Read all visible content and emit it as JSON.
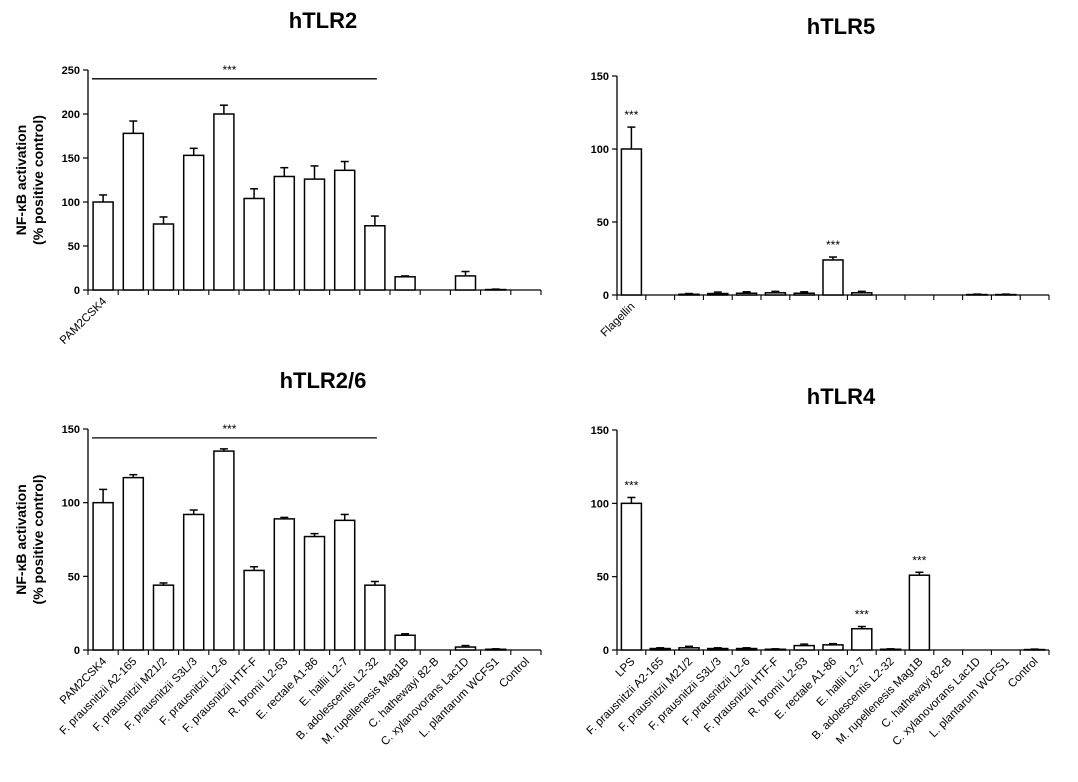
{
  "chart_data": [
    {
      "id": "p1",
      "type": "bar",
      "title": "hTLR2",
      "ylabel": [
        "NF-κB activation",
        "(% positive control)"
      ],
      "xlabel": "",
      "ylim": [
        0,
        250
      ],
      "yticks": [
        0,
        50,
        100,
        150,
        200,
        250
      ],
      "categories": [
        "PAM2CSK4",
        "",
        "",
        "",
        "",
        "",
        "",
        "",
        "",
        "",
        "",
        "",
        "",
        "",
        ""
      ],
      "values": [
        100,
        178,
        75,
        153,
        200,
        104,
        129,
        126,
        136,
        73,
        15,
        0,
        16,
        0.5,
        0
      ],
      "errors": [
        8,
        14,
        8,
        8,
        10,
        11,
        10,
        15,
        10,
        11,
        1,
        0,
        5,
        0.5,
        0
      ],
      "annotations": [
        {
          "text": "***",
          "type": "bracket",
          "value": 240,
          "from": 0,
          "to": 9
        }
      ]
    },
    {
      "id": "p2",
      "type": "bar",
      "title": "hTLR5",
      "ylabel": [],
      "xlabel": "",
      "ylim": [
        0,
        150
      ],
      "yticks": [
        0,
        50,
        100,
        150
      ],
      "categories": [
        "Flagellin",
        "",
        "",
        "",
        "",
        "",
        "",
        "",
        "",
        "",
        "",
        "",
        "",
        "",
        ""
      ],
      "values": [
        100,
        0,
        0.5,
        1,
        1.2,
        1.5,
        1.2,
        24,
        1.5,
        0,
        0,
        0,
        0.3,
        0.3,
        0
      ],
      "errors": [
        15,
        0,
        0.5,
        1,
        1,
        1,
        1,
        2,
        1,
        0,
        0,
        0,
        0.3,
        0.3,
        0
      ],
      "annotations": [
        {
          "text": "***",
          "type": "over",
          "index": 0
        },
        {
          "text": "***",
          "type": "over",
          "index": 7
        }
      ]
    },
    {
      "id": "p3",
      "type": "bar",
      "title": "hTLR2/6",
      "ylabel": [
        "NF-κB activation",
        "(% positive control)"
      ],
      "xlabel": "",
      "ylim": [
        0,
        150
      ],
      "yticks": [
        0,
        50,
        100,
        150
      ],
      "categories": [
        "PAM2CSK4",
        "F. prausnitzii A2-165",
        "F. prausnitzii M21/2",
        "F. prausnitzii S3L/3",
        "F. prausnitzii L2-6",
        "F. prausnitzii HTF-F",
        "R. bromii L2-63",
        "E. rectale A1-86",
        "E. hallii L2-7",
        "B. adolescentis L2-32",
        "M. rupellenesis Mag1B",
        "C. hathewayi 82-B",
        "C. xylanovorans Lac1D",
        "L. plantarum WCFS1",
        "Control"
      ],
      "values": [
        100,
        117,
        44,
        92,
        135,
        54,
        89,
        77,
        88,
        44,
        10,
        0,
        2,
        0.5,
        0
      ],
      "errors": [
        9,
        2,
        1.5,
        3,
        1.5,
        2.5,
        1,
        2,
        4,
        2.5,
        1,
        0,
        1,
        0.3,
        0
      ],
      "annotations": [
        {
          "text": "***",
          "type": "bracket",
          "value": 144,
          "from": 0,
          "to": 9
        }
      ]
    },
    {
      "id": "p4",
      "type": "bar",
      "title": "hTLR4",
      "ylabel": [],
      "xlabel": "",
      "ylim": [
        0,
        150
      ],
      "yticks": [
        0,
        50,
        100,
        150
      ],
      "categories": [
        "LPS",
        "F. prausnitzii A2-165",
        "F. prausnitzii M21/2",
        "F. prausnitzii S3L/3",
        "F. prausnitzii L2-6",
        "F. prausnitzii HTF-F",
        "R. bromii L2-63",
        "E. rectale A1-86",
        "E. hallii L2-7",
        "B. adolescentis L2-32",
        "M. rupellenesis Mag1B",
        "C. hathewayi 82-B",
        "C. xylanovorans Lac1D",
        "L. plantarum WCFS1",
        "Control"
      ],
      "values": [
        100,
        1,
        1.5,
        1,
        1,
        0.5,
        3,
        3.5,
        14.5,
        0.5,
        51,
        0,
        0,
        0,
        0.3
      ],
      "errors": [
        4,
        0.5,
        1,
        0.5,
        0.5,
        0.3,
        1,
        0.8,
        1.5,
        0.3,
        2,
        0,
        0,
        0,
        0.3
      ],
      "annotations": [
        {
          "text": "***",
          "type": "over",
          "index": 0
        },
        {
          "text": "***",
          "type": "over",
          "index": 8
        },
        {
          "text": "***",
          "type": "over",
          "index": 10
        }
      ]
    }
  ]
}
